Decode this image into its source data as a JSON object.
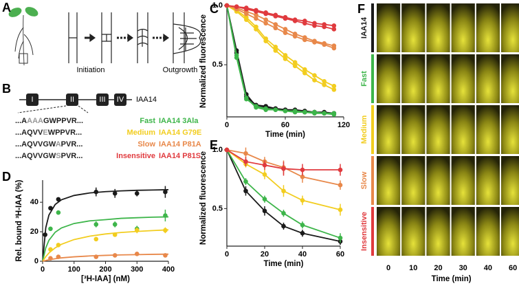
{
  "panels": [
    "A",
    "B",
    "C",
    "D",
    "E",
    "F"
  ],
  "panel_a": {
    "stages": [
      "Initiation",
      "Outgrowth"
    ]
  },
  "panel_b": {
    "protein": "IAA14",
    "domains": [
      "I",
      "II",
      "III",
      "IV"
    ],
    "variants": [
      {
        "seq_pre": "...A",
        "seq_mut": "AAA",
        "seq_post": "GWPPVR...",
        "class": "Fast",
        "name": "IAA14 3Ala",
        "color": "#3db54a"
      },
      {
        "seq_pre": "...AQVV",
        "seq_mut": "E",
        "seq_post": "WPPVR...",
        "class": "Medium",
        "name": "IAA14 G79E",
        "color": "#f2cd1f"
      },
      {
        "seq_pre": "...AQVVGW",
        "seq_mut": "A",
        "seq_post": "PVR...",
        "class": "Slow",
        "name": "IAA14 P81A",
        "color": "#e8884a"
      },
      {
        "seq_pre": "...AQVVGW",
        "seq_mut": "S",
        "seq_post": "PVR...",
        "class": "Insensitive",
        "name": "IAA14 P81S",
        "color": "#e03a3e"
      }
    ]
  },
  "chart_data": [
    {
      "type": "line",
      "xlabel": "Time (min)",
      "ylabel": "Normalized fluorescence",
      "x": [
        0,
        10,
        20,
        30,
        40,
        50,
        60,
        70,
        80,
        90,
        100,
        110
      ],
      "xlim": [
        0,
        120
      ],
      "xticks": [
        0,
        60,
        120
      ],
      "ylim": [
        0.06,
        1.0
      ],
      "yticks": [
        0.5,
        {
          "value": 1.0,
          "label": "1.0"
        }
      ],
      "series": [
        {
          "color": "#1a1a1a",
          "values": [
            1.0,
            0.62,
            0.25,
            0.15,
            0.14,
            0.13,
            0.12,
            0.11,
            0.1,
            0.1,
            0.09,
            0.09
          ]
        },
        {
          "color": "#1a1a1a",
          "values": [
            1.0,
            0.6,
            0.23,
            0.16,
            0.15,
            0.13,
            0.12,
            0.12,
            0.11,
            0.1,
            0.1,
            0.09
          ]
        },
        {
          "color": "#3db54a",
          "values": [
            1.0,
            0.58,
            0.22,
            0.14,
            0.12,
            0.12,
            0.11,
            0.1,
            0.1,
            0.09,
            0.09,
            0.08
          ]
        },
        {
          "color": "#3db54a",
          "values": [
            1.0,
            0.56,
            0.21,
            0.15,
            0.13,
            0.12,
            0.11,
            0.11,
            0.1,
            0.1,
            0.09,
            0.09
          ]
        },
        {
          "color": "#f2cd1f",
          "values": [
            1.0,
            0.96,
            0.9,
            0.82,
            0.72,
            0.65,
            0.58,
            0.52,
            0.46,
            0.41,
            0.36,
            0.32
          ]
        },
        {
          "color": "#f2cd1f",
          "values": [
            1.0,
            0.95,
            0.88,
            0.8,
            0.7,
            0.62,
            0.55,
            0.49,
            0.43,
            0.37,
            0.33,
            0.29
          ]
        },
        {
          "color": "#e8884a",
          "values": [
            1.0,
            0.98,
            0.95,
            0.92,
            0.88,
            0.84,
            0.8,
            0.76,
            0.73,
            0.7,
            0.68,
            0.66
          ]
        },
        {
          "color": "#e8884a",
          "values": [
            1.0,
            0.97,
            0.93,
            0.89,
            0.85,
            0.81,
            0.77,
            0.74,
            0.71,
            0.69,
            0.67,
            0.64
          ]
        },
        {
          "color": "#e03a3e",
          "values": [
            1.0,
            0.99,
            0.98,
            0.96,
            0.94,
            0.92,
            0.9,
            0.88,
            0.87,
            0.85,
            0.84,
            0.83
          ]
        },
        {
          "color": "#e03a3e",
          "values": [
            1.0,
            0.99,
            0.97,
            0.95,
            0.93,
            0.91,
            0.89,
            0.87,
            0.85,
            0.83,
            0.82,
            0.8
          ]
        }
      ]
    },
    {
      "type": "scatter",
      "xlabel": "[³H-IAA] (nM)",
      "ylabel": "Rel. bound ³H-IAA (%)",
      "x": [
        8,
        25,
        50,
        170,
        230,
        300,
        390
      ],
      "xlim": [
        0,
        400
      ],
      "xticks": [
        0,
        100,
        200,
        300,
        400
      ],
      "ylim": [
        0,
        55
      ],
      "yticks": [
        0,
        20,
        40
      ],
      "series": [
        {
          "color": "#1a1a1a",
          "values": [
            18,
            36,
            42,
            47,
            46,
            46,
            47
          ],
          "errors": [
            1,
            1,
            1,
            3,
            3,
            2,
            4
          ]
        },
        {
          "color": "#3db54a",
          "values": [
            null,
            22,
            33,
            25,
            25,
            22,
            31
          ],
          "errors": [
            null,
            1,
            1,
            2,
            2,
            2,
            4
          ]
        },
        {
          "color": "#f2cd1f",
          "values": [
            null,
            8,
            11,
            15,
            18,
            21,
            21
          ],
          "errors": [
            null,
            1,
            1,
            1,
            1,
            2,
            2
          ]
        },
        {
          "color": "#e8884a",
          "values": [
            null,
            2,
            3,
            3,
            4,
            5,
            4
          ],
          "errors": [
            null,
            0.5,
            0.5,
            0.5,
            0.5,
            1,
            1
          ]
        }
      ],
      "fits": [
        {
          "color": "#1a1a1a",
          "x": [
            0,
            10,
            20,
            40,
            60,
            100,
            150,
            200,
            250,
            300,
            350,
            400
          ],
          "values": [
            0,
            22.7,
            31.3,
            38.5,
            41.7,
            44.6,
            46.3,
            47.2,
            47.7,
            48.1,
            48.3,
            48.5
          ]
        },
        {
          "color": "#3db54a",
          "x": [
            0,
            10,
            20,
            40,
            60,
            100,
            150,
            200,
            250,
            300,
            350,
            400
          ],
          "values": [
            0,
            9.1,
            14.2,
            19.7,
            22.6,
            25.6,
            27.4,
            28.2,
            29.1,
            29.5,
            29.9,
            30.1
          ]
        },
        {
          "color": "#f2cd1f",
          "x": [
            0,
            10,
            20,
            40,
            60,
            100,
            150,
            200,
            250,
            300,
            350,
            400
          ],
          "values": [
            0,
            3.1,
            5.6,
            9.1,
            11.5,
            14.7,
            17.0,
            18.5,
            19.5,
            20.2,
            20.8,
            21.3
          ]
        },
        {
          "color": "#e8884a",
          "x": [
            0,
            10,
            20,
            40,
            60,
            100,
            150,
            200,
            250,
            300,
            350,
            400
          ],
          "values": [
            0,
            0.5,
            1.0,
            1.7,
            2.3,
            3.0,
            3.6,
            4.0,
            4.3,
            4.5,
            4.7,
            4.8
          ]
        }
      ]
    },
    {
      "type": "line",
      "xlabel": "Time (min)",
      "ylabel": "Normalized fluorescence",
      "x": [
        0,
        10,
        20,
        30,
        40,
        60
      ],
      "xlim": [
        0,
        60
      ],
      "xticks": [
        0,
        20,
        40,
        60
      ],
      "ylim": [
        0.18,
        1.0
      ],
      "yticks": [
        0.5,
        {
          "value": 1.0,
          "label": "1.0"
        }
      ],
      "series": [
        {
          "color": "#1a1a1a",
          "values": [
            1.0,
            0.65,
            0.48,
            0.35,
            0.29,
            0.22
          ],
          "errors": [
            0.02,
            0.04,
            0.04,
            0.03,
            0.03,
            0.03
          ]
        },
        {
          "color": "#3db54a",
          "values": [
            1.0,
            0.73,
            0.58,
            0.46,
            0.36,
            0.25
          ],
          "errors": [
            0.02,
            0.03,
            0.03,
            0.03,
            0.03,
            0.04
          ]
        },
        {
          "color": "#f2cd1f",
          "values": [
            1.0,
            0.88,
            0.79,
            0.65,
            0.57,
            0.49
          ],
          "errors": [
            0.02,
            0.03,
            0.04,
            0.05,
            0.04,
            0.05
          ]
        },
        {
          "color": "#e8884a",
          "values": [
            1.0,
            0.97,
            0.9,
            0.85,
            0.77,
            0.7
          ],
          "errors": [
            0.02,
            0.05,
            0.04,
            0.06,
            0.05,
            0.04
          ]
        },
        {
          "color": "#e03a3e",
          "values": [
            1.0,
            0.9,
            0.87,
            0.84,
            0.83,
            0.83
          ],
          "errors": [
            0.02,
            0.04,
            0.04,
            0.06,
            0.05,
            0.05
          ]
        }
      ]
    }
  ],
  "panel_f": {
    "xlabel": "Time (min)",
    "columns": [
      0,
      10,
      20,
      30,
      40,
      60
    ],
    "rows": [
      {
        "label": "IAA14",
        "color": "#1a1a1a"
      },
      {
        "label": "Fast",
        "color": "#3db54a"
      },
      {
        "label": "Medium",
        "color": "#f2cd1f"
      },
      {
        "label": "Slow",
        "color": "#e8884a"
      },
      {
        "label": "Insensitive",
        "color": "#e03a3e"
      }
    ]
  }
}
